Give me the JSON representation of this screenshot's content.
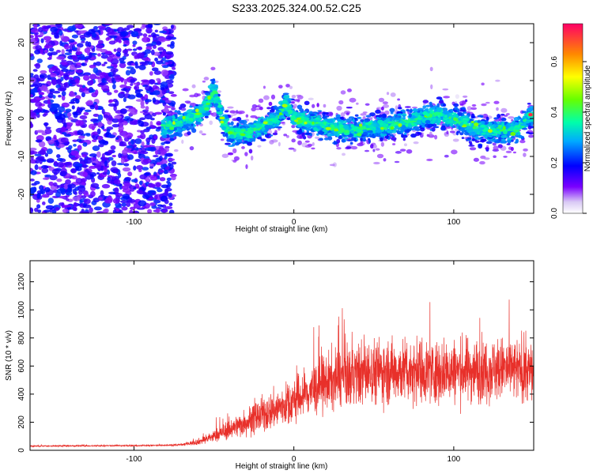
{
  "title": "S233.2025.324.00.52.C25",
  "chart_data": [
    {
      "type": "heatmap",
      "title": "S233.2025.324.00.52.C25",
      "xlabel": "Height of straight line (km)",
      "ylabel": "Frequency (Hz)",
      "xlim": [
        -165,
        150
      ],
      "ylim": [
        -25,
        25
      ],
      "xticks": [
        -100,
        0,
        100
      ],
      "yticks": [
        -20,
        -10,
        0,
        10,
        20
      ],
      "colorbar": {
        "label": "Normalized spectral amplitude",
        "range": [
          0.0,
          0.75
        ],
        "ticks": [
          0.0,
          0.2,
          0.4,
          0.6
        ]
      },
      "ridge": {
        "description_points_x": [
          -80,
          -70,
          -60,
          -55,
          -50,
          -45,
          -40,
          -30,
          -20,
          -10,
          -5,
          0,
          10,
          20,
          30,
          40,
          50,
          60,
          70,
          80,
          90,
          100,
          110,
          120,
          130,
          140,
          148
        ],
        "description_points_y": [
          -2,
          -1,
          1,
          3,
          8,
          0,
          -4,
          -4,
          -2,
          0,
          4,
          0,
          -1,
          -2,
          -3,
          -3,
          -2,
          -2,
          -1,
          0,
          1,
          0,
          -2,
          -3,
          -3,
          -3,
          1
        ]
      }
    },
    {
      "type": "line",
      "xlabel": "Height of straight line (km)",
      "ylabel": "SNR (10 * v/v)",
      "xlim": [
        -165,
        150
      ],
      "ylim": [
        0,
        1350
      ],
      "xticks": [
        -100,
        0,
        100
      ],
      "yticks": [
        0,
        200,
        400,
        600,
        800,
        1000,
        1200
      ],
      "series": [
        {
          "color": "#e8302a",
          "envelope_x": [
            -165,
            -80,
            -70,
            -60,
            -50,
            -40,
            -30,
            -20,
            -10,
            0,
            10,
            20,
            30,
            50,
            70,
            90,
            110,
            130,
            150
          ],
          "envelope_mean": [
            30,
            35,
            40,
            60,
            100,
            150,
            200,
            250,
            300,
            350,
            420,
            480,
            520,
            560,
            570,
            560,
            570,
            580,
            560
          ],
          "envelope_spread": [
            10,
            10,
            15,
            40,
            80,
            130,
            180,
            230,
            270,
            300,
            340,
            380,
            400,
            420,
            420,
            420,
            420,
            420,
            400
          ]
        }
      ]
    }
  ]
}
